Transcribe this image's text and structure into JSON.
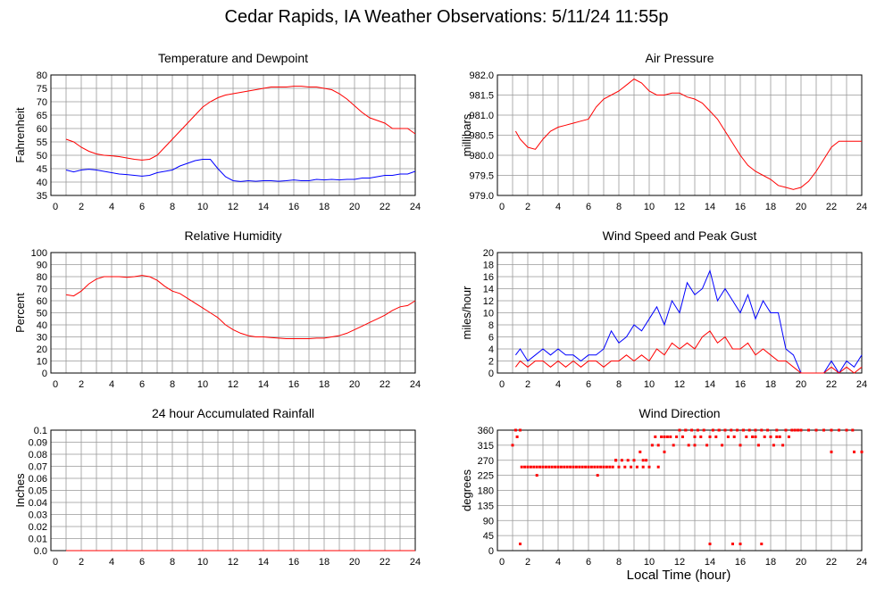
{
  "title": "Cedar Rapids, IA Weather Observations: 5/11/24 11:55p",
  "xaxis_label": "Local Time (hour)",
  "colors": {
    "primary": "#ff0000",
    "secondary": "#0000ff",
    "grid": "#999999"
  },
  "chart_data": [
    {
      "id": "temp",
      "type": "line",
      "title": "Temperature and Dewpoint",
      "ylabel": "Fahrenheit",
      "xlim": [
        0,
        24
      ],
      "ylim": [
        35,
        80
      ],
      "xticks": [
        "2",
        "4",
        "6",
        "8",
        "10",
        "12",
        "14",
        "16",
        "18",
        "20",
        "22",
        "24"
      ],
      "yticks": [
        "35",
        "40",
        "45",
        "50",
        "55",
        "60",
        "65",
        "70",
        "75",
        "80"
      ],
      "grid": true,
      "series": [
        {
          "color": "#ff0000",
          "x": [
            1,
            1.5,
            2,
            2.5,
            3,
            3.5,
            4,
            4.5,
            5,
            5.5,
            6,
            6.5,
            7,
            7.5,
            8,
            8.5,
            9,
            9.5,
            10,
            10.5,
            11,
            11.5,
            12,
            12.5,
            13,
            13.5,
            14,
            14.5,
            15,
            15.5,
            16,
            16.5,
            17,
            17.5,
            18,
            18.5,
            19,
            19.5,
            20,
            20.5,
            21,
            21.5,
            22,
            22.5,
            23,
            23.5,
            24
          ],
          "values": [
            56,
            55,
            53,
            51.5,
            50.5,
            50,
            49.8,
            49.5,
            49,
            48.5,
            48.2,
            48.5,
            50,
            53,
            56,
            59,
            62,
            65,
            68,
            70,
            71.5,
            72.5,
            73,
            73.5,
            74,
            74.5,
            75,
            75.5,
            75.5,
            75.5,
            75.8,
            75.8,
            75.5,
            75.5,
            75,
            74.5,
            73,
            71,
            68.5,
            66,
            64,
            63,
            62,
            60,
            60,
            60,
            58
          ]
        },
        {
          "color": "#0000ff",
          "x": [
            1,
            1.5,
            2,
            2.5,
            3,
            3.5,
            4,
            4.5,
            5,
            5.5,
            6,
            6.5,
            7,
            7.5,
            8,
            8.5,
            9,
            9.5,
            10,
            10.5,
            11,
            11.5,
            12,
            12.5,
            13,
            13.5,
            14,
            14.5,
            15,
            15.5,
            16,
            16.5,
            17,
            17.5,
            18,
            18.5,
            19,
            19.5,
            20,
            20.5,
            21,
            21.5,
            22,
            22.5,
            23,
            23.5,
            24
          ],
          "values": [
            44.5,
            43.8,
            44.5,
            44.8,
            44.5,
            44,
            43.5,
            43,
            42.8,
            42.5,
            42.2,
            42.5,
            43.5,
            44,
            44.5,
            46,
            47,
            48,
            48.5,
            48.5,
            45,
            42,
            40.5,
            40.2,
            40.5,
            40.3,
            40.5,
            40.5,
            40.3,
            40.5,
            40.8,
            40.5,
            40.5,
            41,
            40.8,
            41,
            40.8,
            41,
            41,
            41.5,
            41.5,
            42,
            42.5,
            42.5,
            43,
            43,
            44
          ]
        }
      ]
    },
    {
      "id": "pressure",
      "type": "line",
      "title": "Air Pressure",
      "ylabel": "millibars",
      "xlim": [
        0,
        24
      ],
      "ylim": [
        979.0,
        982.0
      ],
      "xticks": [
        "2",
        "4",
        "6",
        "8",
        "10",
        "12",
        "14",
        "16",
        "18",
        "20",
        "22",
        "24"
      ],
      "yticks": [
        "979.0",
        "979.5",
        "980.0",
        "980.5",
        "981.0",
        "981.5",
        "982.0"
      ],
      "grid": true,
      "series": [
        {
          "color": "#ff0000",
          "x": [
            1.2,
            1.5,
            2,
            2.5,
            3,
            3.5,
            4,
            4.5,
            5,
            5.5,
            6,
            6.5,
            7,
            7.5,
            8,
            8.5,
            9,
            9.5,
            10,
            10.5,
            11,
            11.5,
            12,
            12.5,
            13,
            13.5,
            14,
            14.5,
            15,
            15.5,
            16,
            16.5,
            17,
            17.5,
            18,
            18.5,
            19,
            19.5,
            20,
            20.5,
            21,
            21.5,
            22,
            22.5,
            23,
            23.5,
            24
          ],
          "values": [
            980.6,
            980.4,
            980.2,
            980.15,
            980.4,
            980.6,
            980.7,
            980.75,
            980.8,
            980.85,
            980.9,
            981.2,
            981.4,
            981.5,
            981.6,
            981.75,
            981.9,
            981.8,
            981.6,
            981.5,
            981.5,
            981.55,
            981.55,
            981.45,
            981.4,
            981.3,
            981.1,
            980.9,
            980.6,
            980.3,
            980.0,
            979.75,
            979.6,
            979.5,
            979.4,
            979.25,
            979.2,
            979.15,
            979.2,
            979.35,
            979.6,
            979.9,
            980.2,
            980.35,
            980.35,
            980.35,
            980.35
          ]
        }
      ]
    },
    {
      "id": "humidity",
      "type": "line",
      "title": "Relative Humidity",
      "ylabel": "Percent",
      "xlim": [
        0,
        24
      ],
      "ylim": [
        0,
        100
      ],
      "xticks": [
        "2",
        "4",
        "6",
        "8",
        "10",
        "12",
        "14",
        "16",
        "18",
        "20",
        "22",
        "24"
      ],
      "yticks": [
        "0",
        "10",
        "20",
        "30",
        "40",
        "50",
        "60",
        "70",
        "80",
        "90",
        "100"
      ],
      "grid": true,
      "series": [
        {
          "color": "#ff0000",
          "x": [
            1,
            1.5,
            2,
            2.5,
            3,
            3.5,
            4,
            4.5,
            5,
            5.5,
            6,
            6.5,
            7,
            7.5,
            8,
            8.5,
            9,
            9.5,
            10,
            10.5,
            11,
            11.5,
            12,
            12.5,
            13,
            13.5,
            14,
            14.5,
            15,
            15.5,
            16,
            16.5,
            17,
            17.5,
            18,
            18.5,
            19,
            19.5,
            20,
            20.5,
            21,
            21.5,
            22,
            22.5,
            23,
            23.5,
            24
          ],
          "values": [
            65,
            64,
            68,
            74,
            78,
            80,
            80,
            80,
            79.5,
            80,
            81,
            80,
            77,
            72,
            68,
            66,
            62,
            58,
            54,
            50,
            46,
            40,
            36,
            33,
            31,
            30,
            30,
            29.5,
            29,
            28.5,
            28.5,
            28.5,
            28.5,
            29,
            29,
            30,
            31,
            33,
            36,
            39,
            42,
            45,
            48,
            52,
            55,
            56,
            60
          ]
        }
      ]
    },
    {
      "id": "wind",
      "type": "line",
      "title": "Wind Speed and Peak Gust",
      "ylabel": "miles/hour",
      "xlim": [
        0,
        24
      ],
      "ylim": [
        0,
        20
      ],
      "xticks": [
        "2",
        "4",
        "6",
        "8",
        "10",
        "12",
        "14",
        "16",
        "18",
        "20",
        "22",
        "24"
      ],
      "yticks": [
        "0",
        "2",
        "4",
        "6",
        "8",
        "10",
        "12",
        "14",
        "16",
        "18",
        "20"
      ],
      "grid": true,
      "series": [
        {
          "color": "#0000ff",
          "x": [
            1.2,
            1.5,
            2,
            2.5,
            3,
            3.5,
            4,
            4.5,
            5,
            5.5,
            6,
            6.5,
            7,
            7.5,
            8,
            8.5,
            9,
            9.5,
            10,
            10.5,
            11,
            11.5,
            12,
            12.5,
            13,
            13.5,
            14,
            14.5,
            15,
            15.5,
            16,
            16.5,
            17,
            17.5,
            18,
            18.5,
            19,
            19.5,
            20,
            20.5,
            21,
            21.5,
            22,
            22.5,
            23,
            23.5,
            24
          ],
          "values": [
            3,
            4,
            2,
            3,
            4,
            3,
            4,
            3,
            3,
            2,
            3,
            3,
            4,
            7,
            5,
            6,
            8,
            7,
            9,
            11,
            8,
            12,
            10,
            15,
            13,
            14,
            17,
            12,
            14,
            12,
            10,
            13,
            9,
            12,
            10,
            10,
            4,
            3,
            0,
            0,
            0,
            0,
            2,
            0,
            2,
            1,
            3
          ]
        },
        {
          "color": "#ff0000",
          "x": [
            1.2,
            1.5,
            2,
            2.5,
            3,
            3.5,
            4,
            4.5,
            5,
            5.5,
            6,
            6.5,
            7,
            7.5,
            8,
            8.5,
            9,
            9.5,
            10,
            10.5,
            11,
            11.5,
            12,
            12.5,
            13,
            13.5,
            14,
            14.5,
            15,
            15.5,
            16,
            16.5,
            17,
            17.5,
            18,
            18.5,
            19,
            19.5,
            20,
            20.5,
            21,
            21.5,
            22,
            22.5,
            23,
            23.5,
            24
          ],
          "values": [
            1,
            2,
            1,
            2,
            2,
            1,
            2,
            1,
            2,
            1,
            2,
            2,
            1,
            2,
            2,
            3,
            2,
            3,
            2,
            4,
            3,
            5,
            4,
            5,
            4,
            6,
            7,
            5,
            6,
            4,
            4,
            5,
            3,
            4,
            3,
            2,
            2,
            1,
            0,
            0,
            0,
            0,
            1,
            0,
            1,
            0,
            1
          ]
        }
      ]
    },
    {
      "id": "rain",
      "type": "line",
      "title": "24 hour Accumulated Rainfall",
      "ylabel": "Inches",
      "xlim": [
        0,
        24
      ],
      "ylim": [
        0,
        0.1
      ],
      "xticks": [
        "2",
        "4",
        "6",
        "8",
        "10",
        "12",
        "14",
        "16",
        "18",
        "20",
        "22",
        "24"
      ],
      "yticks": [
        "0.0",
        "0.01",
        "0.02",
        "0.03",
        "0.04",
        "0.05",
        "0.06",
        "0.07",
        "0.08",
        "0.09",
        "0.1"
      ],
      "grid": true,
      "series": [
        {
          "color": "#ff0000",
          "x": [
            1,
            24
          ],
          "values": [
            0,
            0
          ]
        }
      ]
    },
    {
      "id": "direction",
      "type": "scatter",
      "title": "Wind Direction",
      "ylabel": "degrees",
      "xlim": [
        0,
        24
      ],
      "ylim": [
        0,
        360
      ],
      "xticks": [
        "2",
        "4",
        "6",
        "8",
        "10",
        "12",
        "14",
        "16",
        "18",
        "20",
        "22",
        "24"
      ],
      "yticks": [
        "0",
        "45",
        "90",
        "135",
        "180",
        "225",
        "270",
        "315",
        "360"
      ],
      "grid": true,
      "series": [
        {
          "color": "#ff0000",
          "x": [
            1.0,
            1.2,
            1.3,
            1.5,
            1.6,
            1.8,
            2.0,
            2.2,
            2.4,
            2.6,
            2.8,
            3.0,
            3.2,
            3.4,
            3.6,
            3.8,
            4.0,
            4.2,
            4.4,
            4.6,
            4.8,
            5.0,
            5.2,
            5.4,
            5.6,
            5.8,
            6.0,
            6.2,
            6.4,
            6.6,
            6.8,
            7.0,
            7.2,
            7.4,
            7.6,
            7.8,
            8.0,
            8.2,
            8.4,
            8.6,
            8.8,
            9.0,
            9.2,
            9.4,
            9.6,
            9.8,
            10.0,
            10.2,
            10.4,
            10.6,
            10.8,
            11.0,
            11.2,
            11.4,
            11.6,
            11.8,
            12.0,
            12.2,
            12.4,
            12.6,
            12.8,
            13.0,
            13.2,
            13.4,
            13.6,
            13.8,
            14.0,
            14.2,
            14.4,
            14.6,
            14.8,
            15.0,
            15.2,
            15.4,
            15.6,
            15.8,
            16.0,
            16.2,
            16.4,
            16.6,
            16.8,
            17.0,
            17.2,
            17.4,
            17.6,
            17.8,
            18.0,
            18.2,
            18.4,
            18.6,
            18.8,
            19.0,
            19.2,
            19.4,
            19.6,
            19.8,
            20.0,
            20.5,
            21.0,
            21.5,
            22.0,
            22.5,
            23.0,
            23.5,
            24.0,
            1.5,
            2.6,
            6.6,
            7.8,
            9.6,
            10.6,
            11.0,
            12.4,
            13.0,
            14.0,
            14.6,
            15.0,
            15.5,
            16.0,
            16.2,
            17.0,
            17.4,
            18.4,
            19.0,
            22.0,
            23.4
          ],
          "values": [
            315,
            360,
            340,
            360,
            250,
            250,
            250,
            250,
            250,
            250,
            250,
            250,
            250,
            250,
            250,
            250,
            250,
            250,
            250,
            250,
            250,
            250,
            250,
            250,
            250,
            250,
            250,
            250,
            250,
            250,
            250,
            250,
            250,
            250,
            250,
            270,
            250,
            270,
            250,
            270,
            250,
            270,
            250,
            295,
            250,
            270,
            250,
            315,
            340,
            315,
            340,
            340,
            340,
            340,
            315,
            340,
            360,
            340,
            360,
            315,
            360,
            340,
            360,
            340,
            360,
            315,
            340,
            360,
            340,
            360,
            315,
            360,
            340,
            360,
            340,
            360,
            315,
            360,
            340,
            360,
            340,
            360,
            315,
            360,
            340,
            360,
            340,
            315,
            360,
            340,
            315,
            360,
            340,
            360,
            360,
            360,
            360,
            360,
            360,
            360,
            360,
            360,
            360,
            295,
            295,
            20,
            225,
            225,
            270,
            270,
            250,
            295,
            360,
            315,
            20,
            360,
            360,
            20,
            20,
            360,
            340,
            20,
            340,
            360,
            295,
            360
          ]
        }
      ]
    }
  ]
}
